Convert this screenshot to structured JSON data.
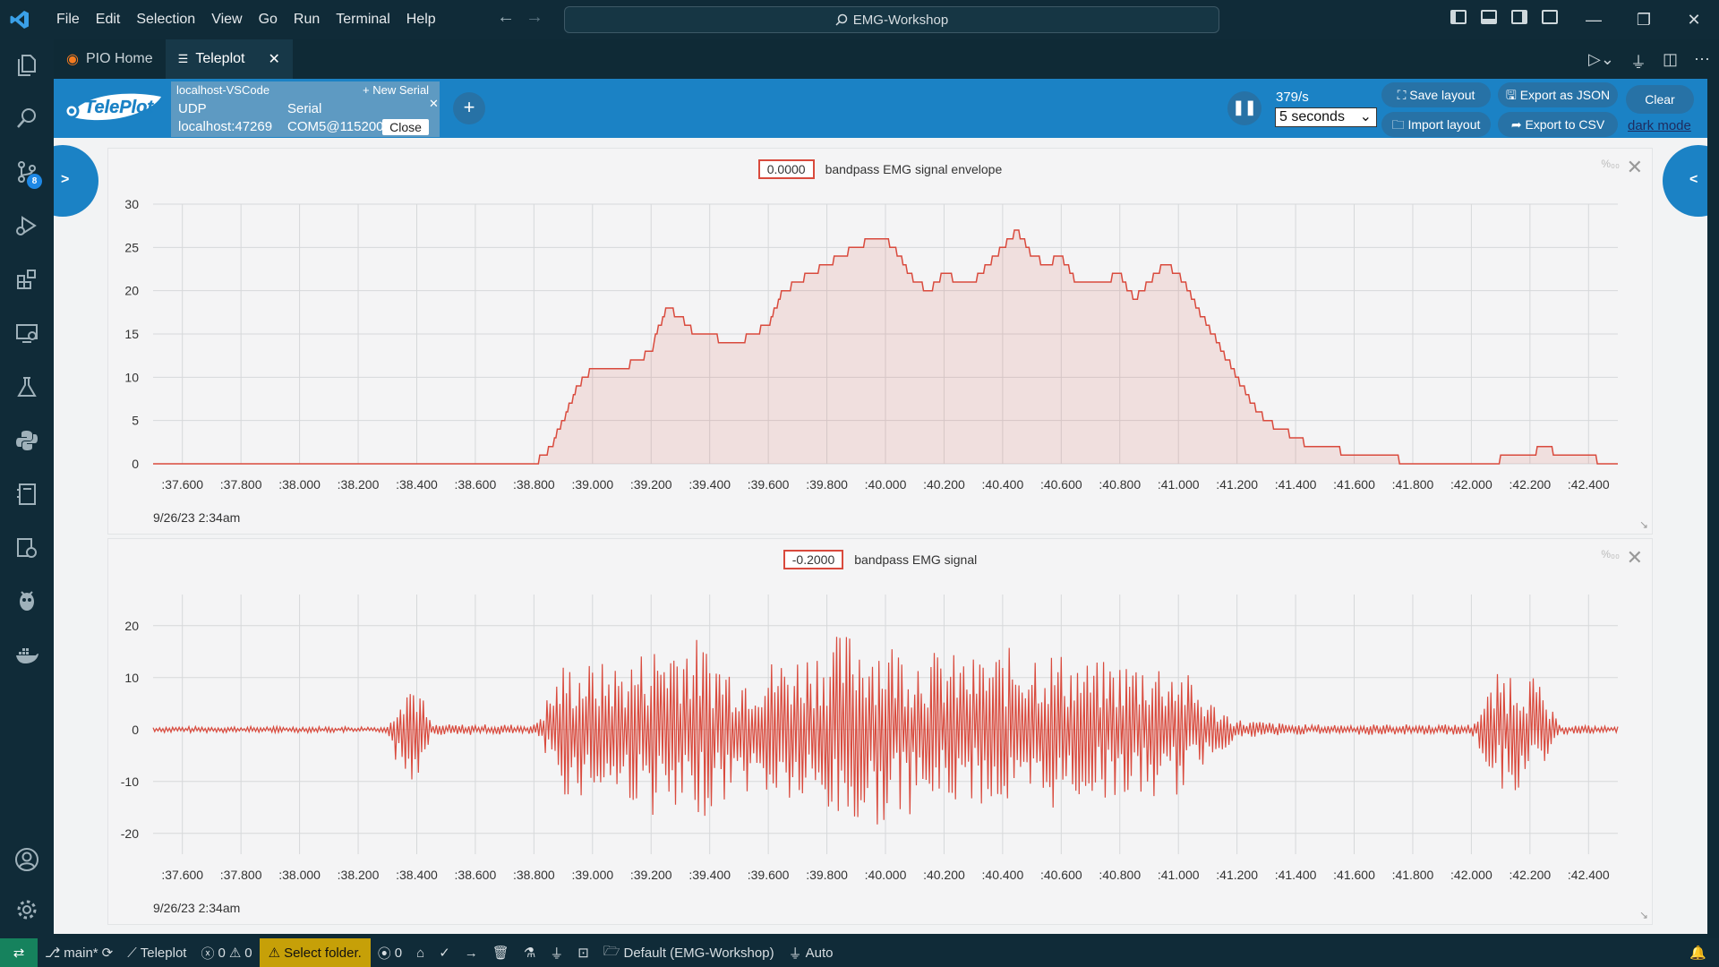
{
  "window": {
    "menu": [
      "File",
      "Edit",
      "Selection",
      "View",
      "Go",
      "Run",
      "Terminal",
      "Help"
    ],
    "search_text": "EMG-Workshop"
  },
  "activity_bar": {
    "icons": [
      "files-icon",
      "search-icon",
      "source-control-icon",
      "run-debug-icon",
      "extensions-icon",
      "remote-explorer-icon",
      "testing-icon",
      "python-icon",
      "notebook-icon",
      "settings-sync-icon",
      "platformio-icon",
      "docker-icon",
      "account-icon",
      "manage-gear-icon"
    ],
    "scm_badge": "8"
  },
  "tabs": [
    {
      "label": "PIO Home",
      "active": false
    },
    {
      "label": "Teleplot",
      "active": true
    }
  ],
  "teleplot": {
    "logo_text": "TelePlot",
    "connection": {
      "name": "localhost-VSCode",
      "new_serial": "+ New Serial",
      "udp_label": "UDP",
      "udp_address": "localhost:47269",
      "serial_label": "Serial",
      "serial_port": "COM5@115200",
      "close_label": "Close"
    },
    "add_label": "+",
    "rate": "379/s",
    "window": "5 seconds",
    "buttons": {
      "save_layout": "⛶ Save layout",
      "import_layout": "🗀 Import layout",
      "export_json": "🖫 Export as JSON",
      "export_csv": "➦ Export to CSV",
      "clear": "Clear",
      "dark_mode": "dark mode"
    },
    "left_toggle": ">",
    "right_toggle": "<"
  },
  "chart_data": [
    {
      "type": "area",
      "title": "bandpass EMG signal envelope",
      "current_value": "0.0000",
      "date_label": "9/26/23 2:34am",
      "x_ticks": [
        ":37.600",
        ":37.800",
        ":38.000",
        ":38.200",
        ":38.400",
        ":38.600",
        ":38.800",
        ":39.000",
        ":39.200",
        ":39.400",
        ":39.600",
        ":39.800",
        ":40.000",
        ":40.200",
        ":40.400",
        ":40.600",
        ":40.800",
        ":41.000",
        ":41.200",
        ":41.400",
        ":41.600",
        ":41.800",
        ":42.000",
        ":42.200",
        ":42.400"
      ],
      "xlim": [
        37.5,
        42.5
      ],
      "y_ticks": [
        0,
        5,
        10,
        15,
        20,
        25,
        30
      ],
      "ylim": [
        0,
        30
      ],
      "color": "#d94a3d",
      "x": [
        37.5,
        38.8,
        38.82,
        38.86,
        38.9,
        38.95,
        39.0,
        39.05,
        39.1,
        39.2,
        39.25,
        39.3,
        39.35,
        39.4,
        39.45,
        39.5,
        39.55,
        39.6,
        39.65,
        39.7,
        39.75,
        39.8,
        39.85,
        39.9,
        39.95,
        40.0,
        40.05,
        40.1,
        40.15,
        40.2,
        40.25,
        40.3,
        40.35,
        40.4,
        40.45,
        40.5,
        40.55,
        40.6,
        40.65,
        40.7,
        40.75,
        40.8,
        40.85,
        40.9,
        40.95,
        41.0,
        41.05,
        41.1,
        41.15,
        41.2,
        41.25,
        41.3,
        41.35,
        41.4,
        41.45,
        41.5,
        41.6,
        41.7,
        41.8,
        41.9,
        42.0,
        42.1,
        42.2,
        42.25,
        42.3,
        42.4,
        42.45,
        42.5
      ],
      "y": [
        0,
        0,
        0.5,
        2,
        5,
        9,
        11,
        11,
        11,
        13,
        18,
        17,
        15,
        15,
        14,
        14,
        15,
        16,
        20,
        21,
        22,
        23,
        24,
        25,
        26,
        26,
        24,
        21,
        20,
        22,
        21,
        21,
        23,
        25,
        27,
        24,
        23,
        24,
        21,
        21,
        21,
        22,
        19,
        21,
        23,
        22,
        19,
        16,
        13,
        10,
        7,
        5,
        4,
        3,
        2,
        2,
        1,
        1,
        0,
        0,
        0,
        0.5,
        1,
        2,
        1,
        1,
        0,
        0
      ]
    },
    {
      "type": "line",
      "title": "bandpass EMG signal",
      "current_value": "-0.2000",
      "date_label": "9/26/23 2:34am",
      "x_ticks": [
        ":37.600",
        ":37.800",
        ":38.000",
        ":38.200",
        ":38.400",
        ":38.600",
        ":38.800",
        ":39.000",
        ":39.200",
        ":39.400",
        ":39.600",
        ":39.800",
        ":40.000",
        ":40.200",
        ":40.400",
        ":40.600",
        ":40.800",
        ":41.000",
        ":41.200",
        ":41.400",
        ":41.600",
        ":41.800",
        ":42.000",
        ":42.200",
        ":42.400"
      ],
      "xlim": [
        37.5,
        42.5
      ],
      "y_ticks": [
        -20,
        -10,
        0,
        10,
        20
      ],
      "ylim": [
        -24,
        26
      ],
      "color": "#d94a3d",
      "envelope_x": [
        37.5,
        38.3,
        38.35,
        38.4,
        38.45,
        38.8,
        38.9,
        39.1,
        39.3,
        39.5,
        39.7,
        39.9,
        40.1,
        40.3,
        40.5,
        40.7,
        40.9,
        41.0,
        41.1,
        41.2,
        41.4,
        41.6,
        41.8,
        42.0,
        42.1,
        42.2,
        42.3,
        42.5
      ],
      "envelope_amp": [
        0.6,
        0.6,
        11,
        10,
        1,
        1,
        13,
        13,
        20,
        12,
        15,
        20,
        16,
        14,
        17,
        13,
        14,
        13,
        6,
        2,
        1,
        1,
        1,
        1,
        12,
        12,
        1,
        0.6
      ]
    }
  ],
  "statusbar": {
    "branch": "main*",
    "teleplot": "Teleplot",
    "errors": "0",
    "warnings": "0",
    "select_folder": "Select folder.",
    "ports": "0",
    "env": "Default (EMG-Workshop)",
    "auto": "Auto"
  }
}
